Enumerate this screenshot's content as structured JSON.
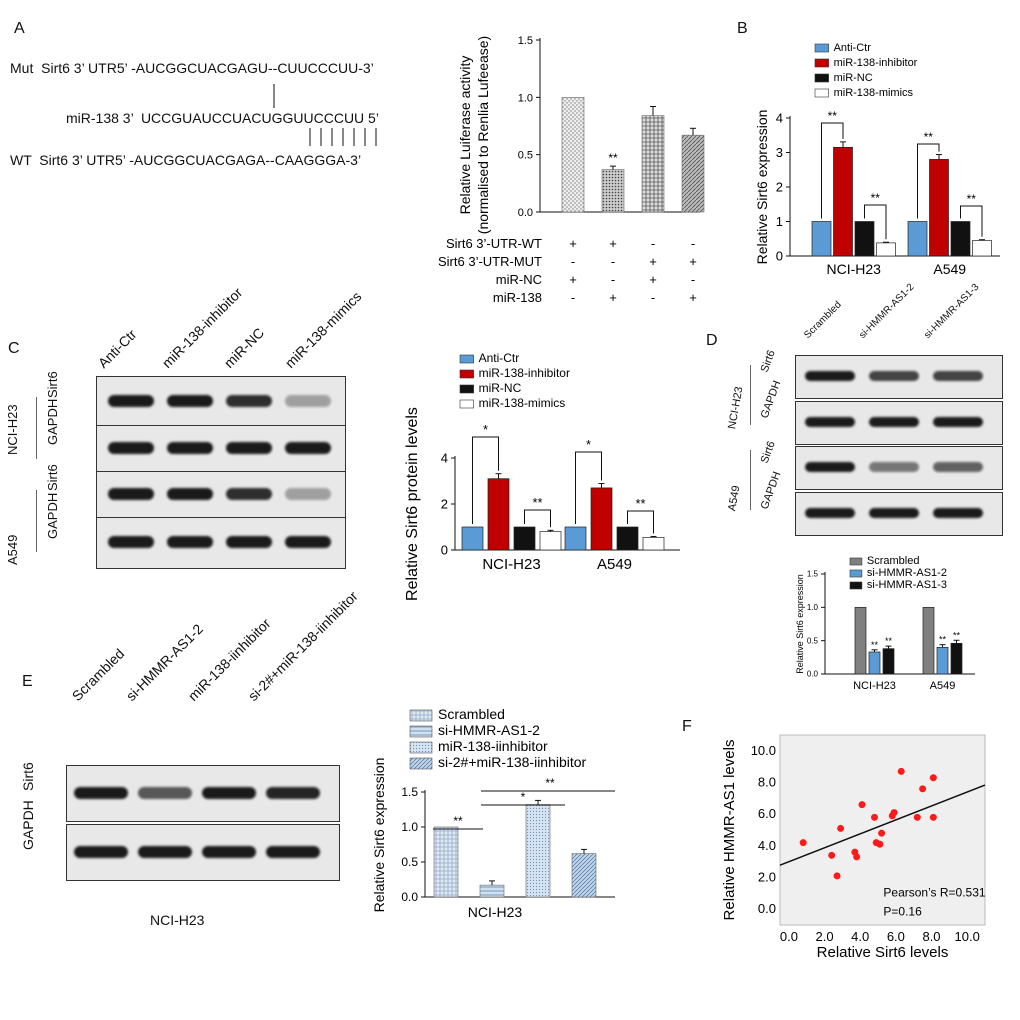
{
  "panels": {
    "A": "A",
    "B": "B",
    "C": "C",
    "D": "D",
    "E": "E",
    "F": "F"
  },
  "sequences": {
    "mut_label": "Mut  Sirt6 3’ UTR5’ -AUCGGCUACGAGU--CUUCCCUU-3’",
    "mir_label": "miR-138 3’  UCCGUAUCCUACUGGUUCCCUU 5’",
    "wt_label": "WT  Sirt6 3’ UTR5’ -AUCGGCUACGAGA--CAAGGGA-3’"
  },
  "colors": {
    "blue": "#5b9bd5",
    "red": "#c00000",
    "black": "#111111",
    "white": "#ffffff",
    "gray": "#808080"
  },
  "chart_data": [
    {
      "id": "A",
      "type": "bar",
      "ylabel": "Relative Luiferase activity\n(normalised to Renlia Lufeease)",
      "ylim": [
        0,
        1.5
      ],
      "yticks": [
        "0.0",
        "0.5",
        "1.0",
        "1.5"
      ],
      "values": [
        1.0,
        0.37,
        0.84,
        0.67
      ],
      "errors": [
        0,
        0.03,
        0.08,
        0.06
      ],
      "sig": [
        "",
        "**",
        "",
        ""
      ],
      "conditions": [
        {
          "label": "Sirt6 3’-UTR-WT",
          "marks": [
            "+",
            "+",
            "-",
            "-"
          ]
        },
        {
          "label": "Sirt6 3’-UTR-MUT",
          "marks": [
            "-",
            "-",
            "+",
            "+"
          ]
        },
        {
          "label": "miR-NC",
          "marks": [
            "+",
            "-",
            "+",
            "-"
          ]
        },
        {
          "label": "miR-138",
          "marks": [
            "-",
            "+",
            "-",
            "+"
          ]
        }
      ]
    },
    {
      "id": "B",
      "type": "bar",
      "ylabel": "Relative Sirt6 expression",
      "ylim": [
        0,
        4
      ],
      "yticks": [
        "0",
        "1",
        "2",
        "3",
        "4"
      ],
      "categories": [
        "NCI-H23",
        "A549"
      ],
      "series": [
        {
          "name": "Anti-Ctr",
          "values": [
            1.0,
            1.0
          ]
        },
        {
          "name": "miR-138-inhibitor",
          "values": [
            3.15,
            2.8
          ]
        },
        {
          "name": "miR-NC",
          "values": [
            1.0,
            1.0
          ]
        },
        {
          "name": "miR-138-mimics",
          "values": [
            0.38,
            0.45
          ]
        }
      ],
      "brackets": [
        "**",
        "**",
        "**",
        "**"
      ]
    },
    {
      "id": "C",
      "type": "bar",
      "ylabel": "Relative Sirt6 protein levels",
      "ylim": [
        0,
        4
      ],
      "yticks": [
        "0",
        "2",
        "4"
      ],
      "categories": [
        "NCI-H23",
        "A549"
      ],
      "series": [
        {
          "name": "Anti-Ctr",
          "values": [
            1.0,
            1.0
          ]
        },
        {
          "name": "miR-138-inhibitor",
          "values": [
            3.1,
            2.7
          ]
        },
        {
          "name": "miR-NC",
          "values": [
            1.0,
            1.0
          ]
        },
        {
          "name": "miR-138-mimics",
          "values": [
            0.8,
            0.55
          ]
        }
      ],
      "brackets": [
        "*",
        "**",
        "*",
        "**"
      ]
    },
    {
      "id": "D",
      "type": "bar",
      "ylabel": "Relative Sirt6 expression",
      "ylim": [
        0,
        1.5
      ],
      "yticks": [
        "0.0",
        "0.5",
        "1.0",
        "1.5"
      ],
      "categories": [
        "NCI-H23",
        "A549"
      ],
      "series": [
        {
          "name": "Scrambled",
          "values": [
            1.0,
            1.0
          ]
        },
        {
          "name": "si-HMMR-AS1-2",
          "values": [
            0.33,
            0.4
          ]
        },
        {
          "name": "si-HMMR-AS1-3",
          "values": [
            0.38,
            0.46
          ]
        }
      ],
      "sig": "**"
    },
    {
      "id": "E",
      "type": "bar",
      "ylabel": "Relative Sirt6 expression",
      "xlabel": "NCI-H23",
      "ylim": [
        0,
        1.5
      ],
      "yticks": [
        "0.0",
        "0.5",
        "1.0",
        "1.5"
      ],
      "series": [
        {
          "name": "Scrambled",
          "values": [
            1.0
          ]
        },
        {
          "name": "si-HMMR-AS1-2",
          "values": [
            0.17
          ]
        },
        {
          "name": "miR-138-iinhibitor",
          "values": [
            1.32
          ]
        },
        {
          "name": "si-2#+miR-138-iinhibitor",
          "values": [
            0.62
          ]
        }
      ],
      "brackets": [
        "**",
        "*",
        "**"
      ]
    },
    {
      "id": "F",
      "type": "scatter",
      "xlabel": "Relative Sirt6 levels",
      "ylabel": "Relative HMMR-AS1 levels",
      "xlim": [
        -0.5,
        11
      ],
      "ylim": [
        -1,
        11
      ],
      "xticks": [
        "0.0",
        "2.0",
        "4.0",
        "6.0",
        "8.0",
        "10.0"
      ],
      "yticks": [
        "0.0",
        "2.0",
        "4.0",
        "6.0",
        "8.0",
        "10.0"
      ],
      "points": [
        [
          0.8,
          4.2
        ],
        [
          2.4,
          3.4
        ],
        [
          2.7,
          2.1
        ],
        [
          2.9,
          5.1
        ],
        [
          3.7,
          3.6
        ],
        [
          3.8,
          3.3
        ],
        [
          4.1,
          6.6
        ],
        [
          4.8,
          5.8
        ],
        [
          4.9,
          4.2
        ],
        [
          5.2,
          4.8
        ],
        [
          5.1,
          4.1
        ],
        [
          5.8,
          5.9
        ],
        [
          5.9,
          6.1
        ],
        [
          6.3,
          8.7
        ],
        [
          7.2,
          5.8
        ],
        [
          7.5,
          7.6
        ],
        [
          8.1,
          8.3
        ],
        [
          8.1,
          5.8
        ]
      ],
      "fit": {
        "intercept": 3.0,
        "slope": 0.44
      },
      "annotation_r": "Pearson’s R=0.531",
      "annotation_p": "P=0.16"
    }
  ],
  "blots": {
    "C": {
      "lanes": [
        "Anti-Ctr",
        "miR-138-inhibitor",
        "miR-NC",
        "miR-138-mimics"
      ],
      "cells": [
        "NCI-H23",
        "A549"
      ],
      "rows": [
        "Sirt6",
        "GAPDH",
        "Sirt6",
        "GAPDH"
      ]
    },
    "D": {
      "lanes": [
        "Scrambled",
        "si-HMMR-AS1-2",
        "si-HMMR-AS1-3"
      ],
      "cells": [
        "NCI-H23",
        "A549"
      ],
      "rows": [
        "Sirt6",
        "GAPDH",
        "Sirt6",
        "GAPDH"
      ]
    },
    "E": {
      "lanes": [
        "Scrambled",
        "si-HMMR-AS1-2",
        "miR-138-iinhibitor",
        "si-2#+miR-138-iinhibitor"
      ],
      "rows": [
        "Sirt6",
        "GAPDH"
      ],
      "cell": "NCI-H23"
    }
  }
}
